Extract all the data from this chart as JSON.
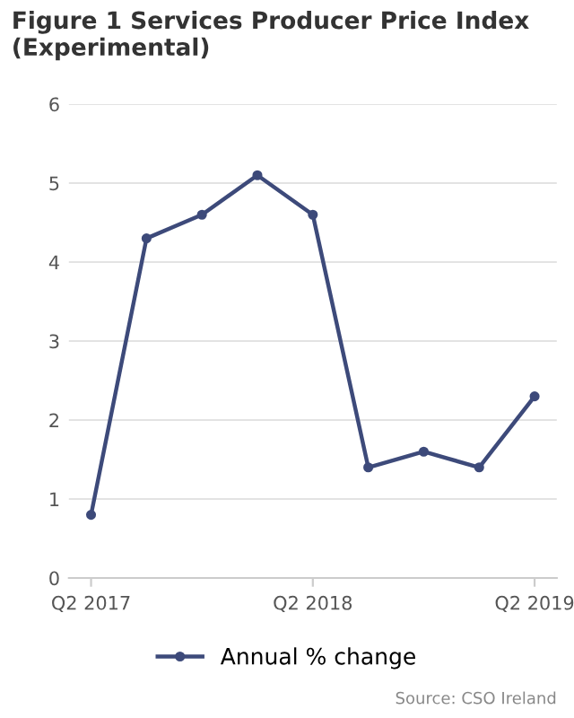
{
  "chart_data": {
    "type": "line",
    "title": "Figure 1 Services Producer Price Index (Experimental)",
    "categories": [
      "Q2 2017",
      null,
      null,
      null,
      "Q2 2018",
      null,
      null,
      null,
      "Q2 2019"
    ],
    "series": [
      {
        "name": "Annual % change",
        "color": "#3d4a7a",
        "values": [
          0.8,
          4.3,
          4.6,
          5.1,
          4.6,
          1.4,
          1.6,
          1.4,
          2.3
        ]
      }
    ],
    "ylim": [
      0,
      6
    ],
    "yticks": [
      0,
      1,
      2,
      3,
      4,
      5,
      6
    ],
    "grid": "y",
    "legend": "bottom",
    "marker": "circle",
    "line_style": "solid",
    "annotations": [
      "Source: CSO Ireland"
    ]
  }
}
